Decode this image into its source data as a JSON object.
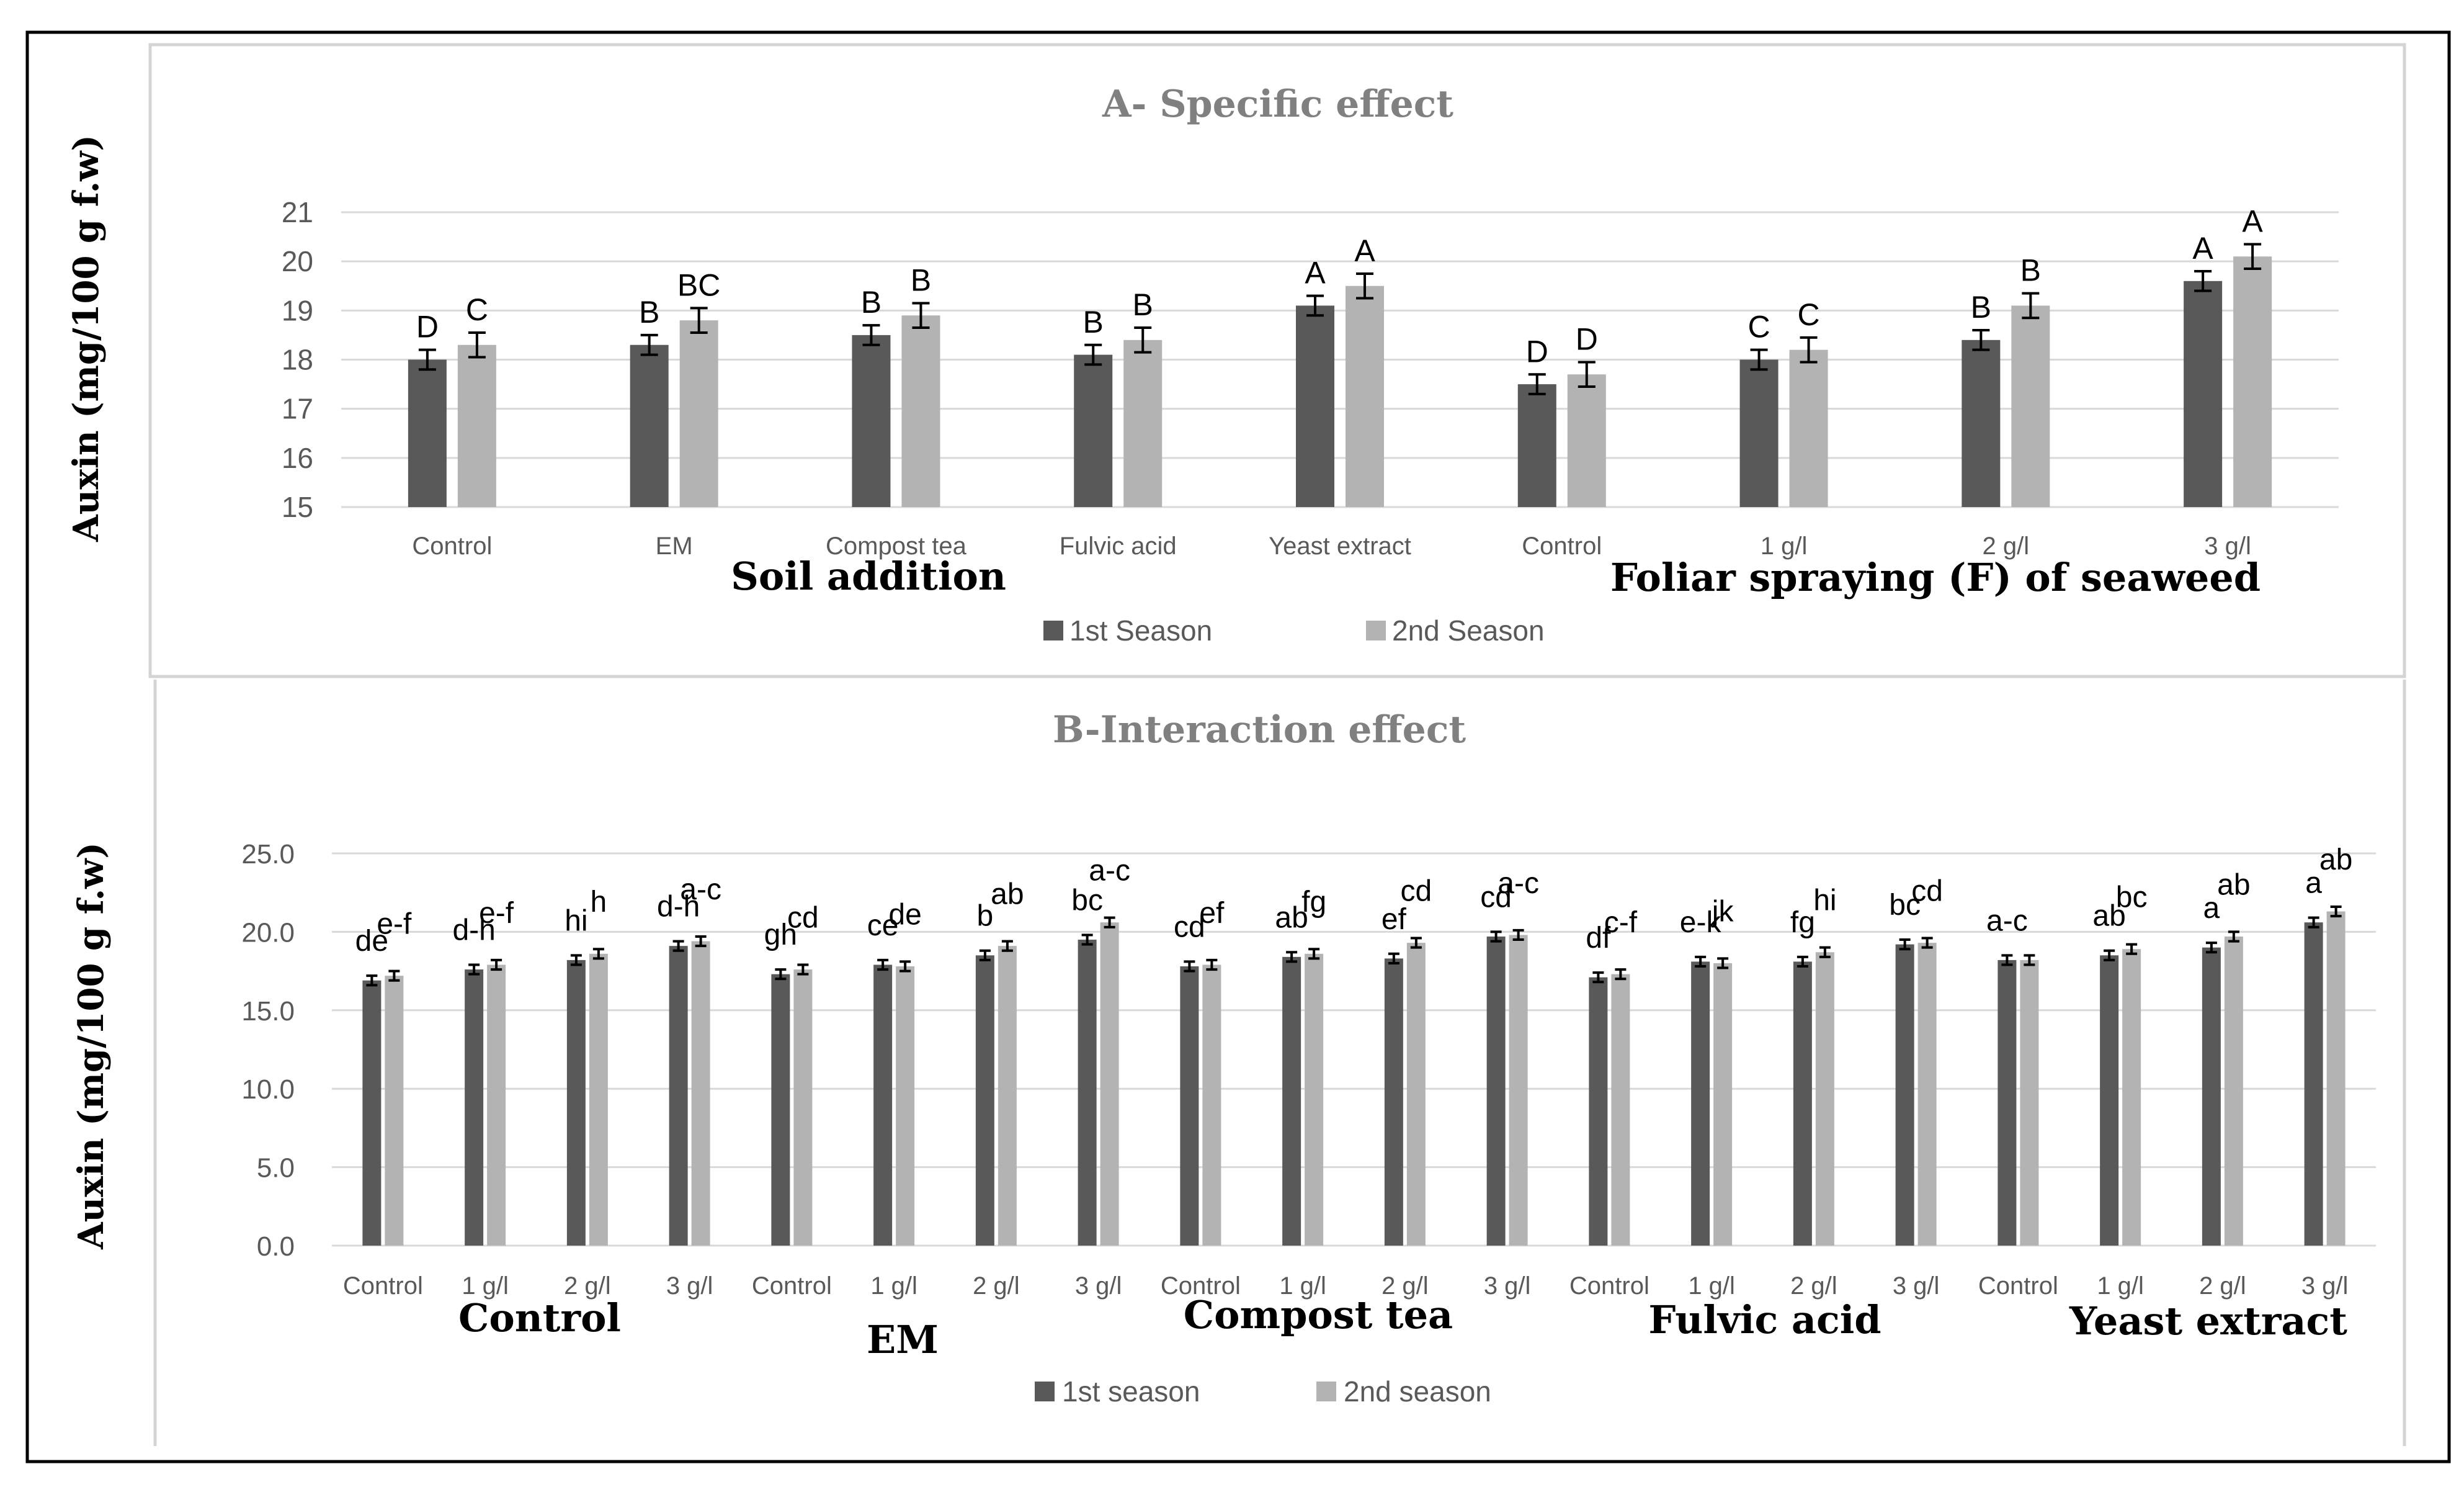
{
  "chart_data": [
    {
      "type": "bar",
      "title": "A- Specific effect",
      "ylabel": "Auxin (mg/100 g f.w)",
      "ylim": [
        15,
        21
      ],
      "yticks": [
        "15",
        "16",
        "17",
        "18",
        "19",
        "20",
        "21"
      ],
      "categories": [
        "Control",
        "EM",
        "Compost tea",
        "Fulvic acid",
        "Yeast extract",
        "Control",
        "1 g/l",
        "2 g/l",
        "3 g/l"
      ],
      "group_labels": [
        "Soil addition",
        "Foliar spraying (F) of seaweed"
      ],
      "series": [
        {
          "name": "1st Season",
          "color": "#595959",
          "values": [
            18.0,
            18.3,
            18.5,
            18.1,
            19.1,
            17.5,
            18.0,
            18.4,
            19.6
          ],
          "errors": [
            0.2,
            0.2,
            0.2,
            0.2,
            0.2,
            0.2,
            0.2,
            0.2,
            0.2
          ],
          "letters": [
            "D",
            "B",
            "B",
            "B",
            "A",
            "D",
            "C",
            "B",
            "A"
          ]
        },
        {
          "name": "2nd Season",
          "color": "#b3b3b3",
          "values": [
            18.3,
            18.8,
            18.9,
            18.4,
            19.5,
            17.7,
            18.2,
            19.1,
            20.1
          ],
          "errors": [
            0.25,
            0.25,
            0.25,
            0.25,
            0.25,
            0.25,
            0.25,
            0.25,
            0.25
          ],
          "letters": [
            "C",
            "BC",
            "B",
            "B",
            "A",
            "D",
            "C",
            "B",
            "A"
          ]
        }
      ]
    },
    {
      "type": "bar",
      "title": "B-Interaction effect",
      "ylabel": "Auxin (mg/100 g f.w)",
      "ylim": [
        0,
        25
      ],
      "yticks": [
        "0.0",
        "5.0",
        "10.0",
        "15.0",
        "20.0",
        "25.0"
      ],
      "categories": [
        "Control",
        "1 g/l",
        "2 g/l",
        "3 g/l",
        "Control",
        "1 g/l",
        "2 g/l",
        "3 g/l",
        "Control",
        "1 g/l",
        "2 g/l",
        "3 g/l",
        "Control",
        "1 g/l",
        "2 g/l",
        "3 g/l",
        "Control",
        "1 g/l",
        "2 g/l",
        "3 g/l"
      ],
      "group_labels": [
        "Control",
        "EM",
        "Compost tea",
        "Fulvic acid",
        "Yeast extract"
      ],
      "series": [
        {
          "name": "1st season",
          "color": "#595959",
          "values": [
            16.9,
            17.6,
            18.2,
            19.1,
            17.3,
            17.9,
            18.5,
            19.5,
            17.8,
            18.4,
            18.3,
            19.7,
            17.1,
            18.1,
            18.1,
            19.2,
            18.2,
            18.5,
            19.0,
            20.6
          ],
          "letters": [
            "de",
            "d-h",
            "hi",
            "d-h",
            "gh",
            "ce",
            "b",
            "bc",
            "cd",
            "ab",
            "ef",
            "cd",
            "df",
            "e-k",
            "fg",
            "bc",
            "a-c",
            "ab",
            "a",
            "a"
          ]
        },
        {
          "name": "2nd season",
          "color": "#b3b3b3",
          "values": [
            17.2,
            17.9,
            18.6,
            19.4,
            17.6,
            17.8,
            19.1,
            20.6,
            17.9,
            18.6,
            19.3,
            19.8,
            17.3,
            18.0,
            18.7,
            19.3,
            18.2,
            18.9,
            19.7,
            21.3
          ],
          "letters": [
            "e-f",
            "e-f",
            "h",
            "a-c",
            "cd",
            "de",
            "ab",
            "a-c",
            "ef",
            "fg",
            "cd",
            "a-c",
            "c-f",
            "jk",
            "hi",
            "cd",
            "",
            "bc",
            "ab",
            "ab"
          ]
        }
      ]
    }
  ]
}
